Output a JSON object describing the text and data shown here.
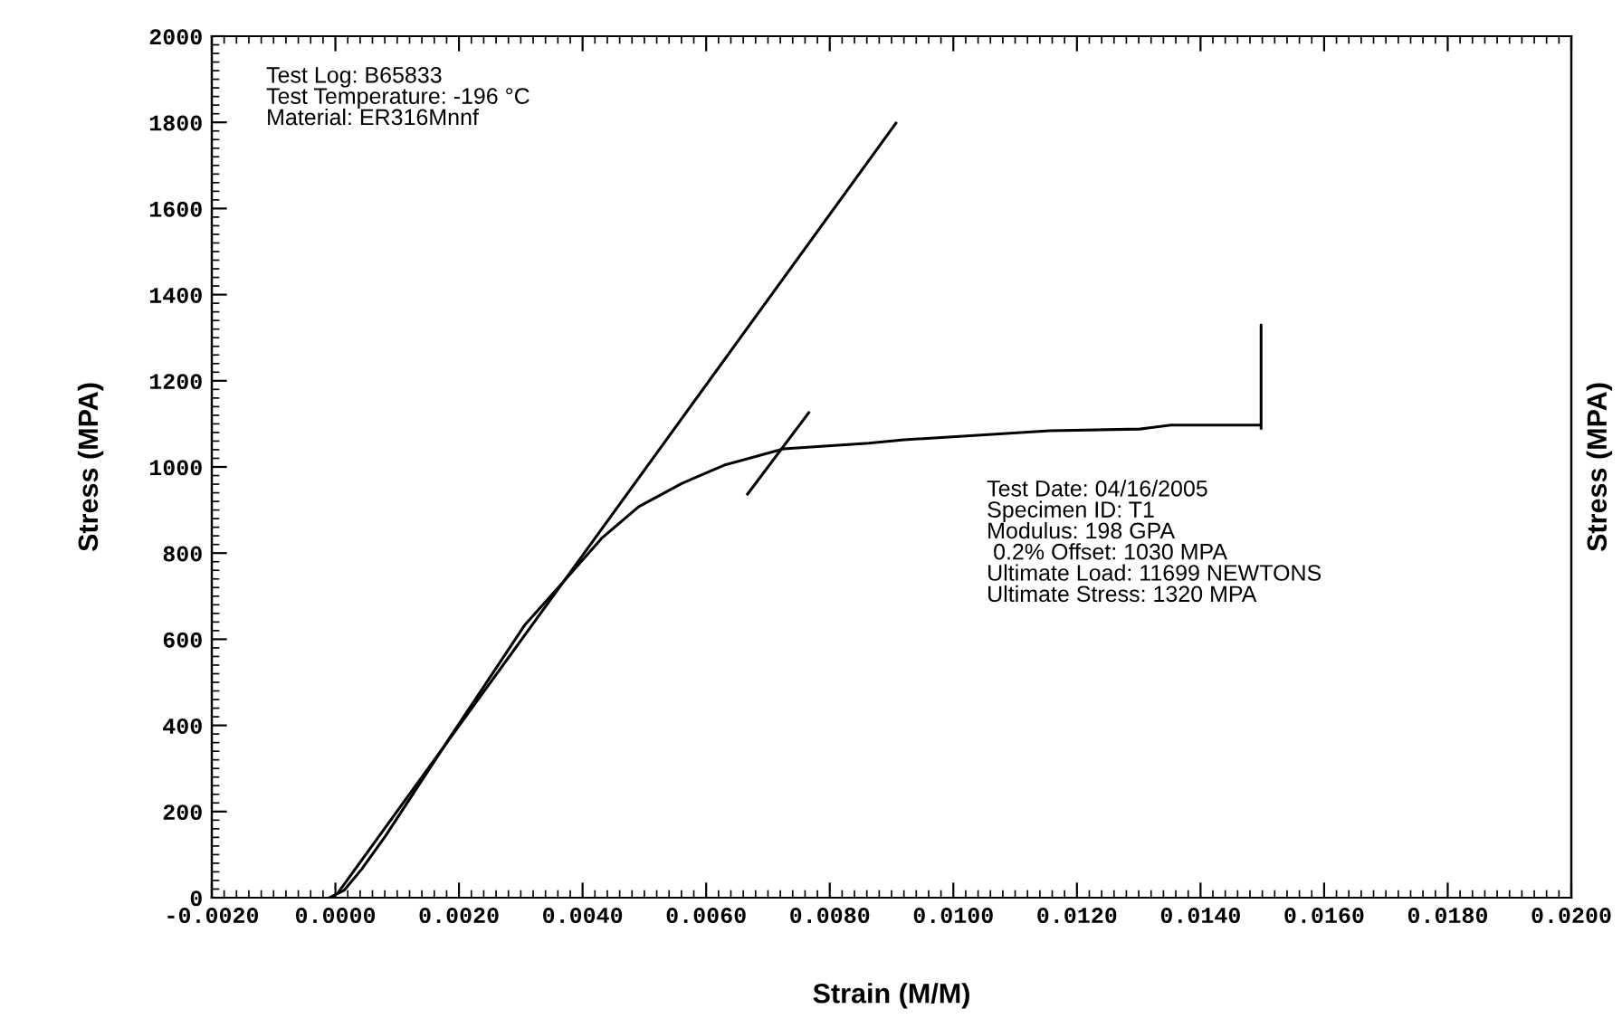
{
  "chart_data": {
    "type": "line",
    "xlabel": "Strain (M/M)",
    "ylabel": "Stress (MPA)",
    "y2label": "Stress (MPA)",
    "xlim": [
      -0.002,
      0.02
    ],
    "xticks": [
      {
        "value": -0.002,
        "label": "-0.0020"
      },
      {
        "value": 0,
        "label": "0.0000"
      },
      {
        "value": 0.002,
        "label": "0.0020"
      },
      {
        "value": 0.004,
        "label": "0.0040"
      },
      {
        "value": 0.006,
        "label": "0.0060"
      },
      {
        "value": 0.008,
        "label": "0.0080"
      },
      {
        "value": 0.01,
        "label": "0.0100"
      },
      {
        "value": 0.012,
        "label": "0.0120"
      },
      {
        "value": 0.014,
        "label": "0.0140"
      },
      {
        "value": 0.016,
        "label": "0.0160"
      },
      {
        "value": 0.018,
        "label": "0.0180"
      },
      {
        "value": 0.02,
        "label": "0.0200"
      }
    ],
    "ylim": [
      0,
      2000
    ],
    "yticks": [
      0,
      200,
      400,
      600,
      800,
      1000,
      1200,
      1400,
      1600,
      1800,
      2000
    ],
    "grid": false,
    "marker": "none",
    "line_style": "solid",
    "series": [
      {
        "color": "#000000",
        "x": [
          -0.0001,
          0.00014,
          0.00043,
          0.00081,
          0.0019,
          0.00307,
          0.00365,
          0.00432,
          0.00491,
          0.00561,
          0.00629,
          0.00725,
          0.00863,
          0.0092,
          0.01156,
          0.01302,
          0.01352,
          0.01498,
          0.01498,
          0.01498
        ],
        "values": [
          0,
          17,
          67,
          143,
          382,
          634,
          727,
          836,
          908,
          962,
          1004,
          1042,
          1055,
          1063,
          1084,
          1088,
          1097,
          1097,
          1330,
          1090
        ]
      },
      {
        "color": "#000000",
        "x": [
          5e-05,
          0.00907
        ],
        "values": [
          13,
          1798
        ]
      },
      {
        "color": "#000000",
        "x": [
          0.00667,
          0.00766
        ],
        "values": [
          937,
          1126
        ]
      }
    ],
    "annotations": [
      "Test Log: B65833\nTest Temperature: -196 °C\nMaterial: ER316Mnnf",
      "Test Date: 04/16/2005\nSpecimen ID: T1\nModulus: 198 GPA\n 0.2% Offset: 1030 MPA\nUltimate Load: 11699 NEWTONS\nUltimate Stress: 1320 MPA"
    ]
  }
}
